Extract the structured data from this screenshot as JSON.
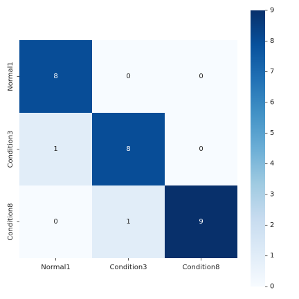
{
  "chart_data": {
    "type": "heatmap",
    "title": "",
    "xlabel": "",
    "ylabel": "",
    "x_categories": [
      "Normal1",
      "Condition3",
      "Condition8"
    ],
    "y_categories": [
      "Normal1",
      "Condition3",
      "Condition8"
    ],
    "values": [
      [
        8,
        0,
        0
      ],
      [
        1,
        8,
        0
      ],
      [
        0,
        1,
        9
      ]
    ],
    "colormap": "Blues",
    "vmin": 0,
    "vmax": 9,
    "colorbar_ticks": [
      0,
      1,
      2,
      3,
      4,
      5,
      6,
      7,
      8,
      9
    ],
    "grid": false,
    "colors": {
      "low": "#f7fbff",
      "high": "#08306b",
      "text_on_dark": "#ffffff",
      "text_on_light": "#262626"
    }
  }
}
